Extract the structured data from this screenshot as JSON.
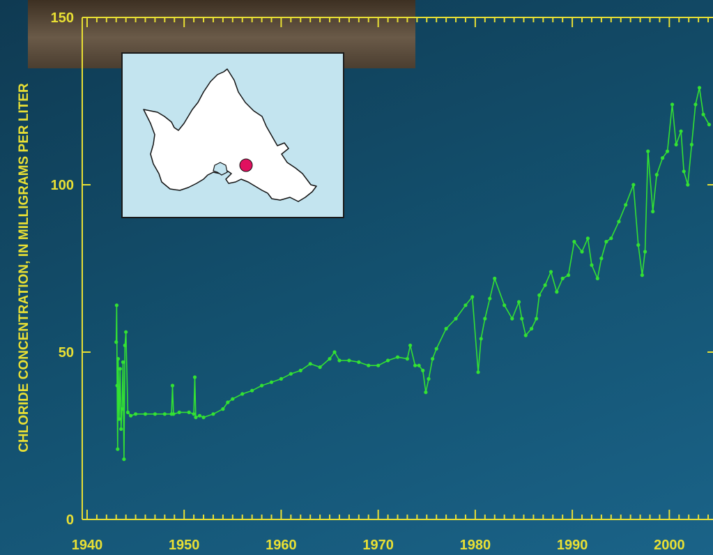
{
  "chart_data": {
    "type": "line",
    "ylabel": "CHLORIDE CONCENTRATION, IN MILLIGRAMS PER LITER",
    "xlabel": "",
    "title": "",
    "x_ticks": [
      "1940",
      "1950",
      "1960",
      "1970",
      "1980",
      "1990",
      "2000"
    ],
    "y_ticks": [
      "0",
      "50",
      "100",
      "150"
    ],
    "xlim": [
      1939.5,
      2004.5
    ],
    "ylim": [
      0,
      150
    ],
    "grid": false,
    "series": [
      {
        "points": [
          [
            1943.0,
            53
          ],
          [
            1943.05,
            64
          ],
          [
            1943.1,
            40
          ],
          [
            1943.15,
            21
          ],
          [
            1943.2,
            48
          ],
          [
            1943.3,
            30
          ],
          [
            1943.4,
            45
          ],
          [
            1943.5,
            27
          ],
          [
            1943.6,
            33
          ],
          [
            1943.7,
            47
          ],
          [
            1943.8,
            18
          ],
          [
            1943.9,
            52
          ],
          [
            1944.0,
            56
          ],
          [
            1944.2,
            32
          ],
          [
            1944.5,
            31
          ],
          [
            1945,
            31.5
          ],
          [
            1946,
            31.5
          ],
          [
            1947,
            31.5
          ],
          [
            1948,
            31.5
          ],
          [
            1948.7,
            31.5
          ],
          [
            1948.8,
            40
          ],
          [
            1948.9,
            31.5
          ],
          [
            1949.5,
            32
          ],
          [
            1950.5,
            32
          ],
          [
            1951.0,
            31.5
          ],
          [
            1951.1,
            42.5
          ],
          [
            1951.2,
            30.5
          ],
          [
            1951.6,
            31
          ],
          [
            1952,
            30.5
          ],
          [
            1953,
            31.5
          ],
          [
            1954,
            33
          ],
          [
            1954.5,
            35
          ],
          [
            1955,
            36
          ],
          [
            1956,
            37.5
          ],
          [
            1957,
            38.5
          ],
          [
            1958,
            40
          ],
          [
            1959,
            41
          ],
          [
            1960,
            42
          ],
          [
            1961,
            43.5
          ],
          [
            1962,
            44.5
          ],
          [
            1963,
            46.5
          ],
          [
            1964,
            45.5
          ],
          [
            1965,
            48
          ],
          [
            1965.5,
            50
          ],
          [
            1966,
            47.5
          ],
          [
            1967,
            47.5
          ],
          [
            1968,
            47
          ],
          [
            1969,
            46
          ],
          [
            1970,
            46
          ],
          [
            1971,
            47.5
          ],
          [
            1972,
            48.5
          ],
          [
            1973,
            48
          ],
          [
            1973.3,
            52
          ],
          [
            1973.8,
            46
          ],
          [
            1974.2,
            46
          ],
          [
            1974.6,
            44.5
          ],
          [
            1974.9,
            38
          ],
          [
            1975.2,
            42
          ],
          [
            1975.6,
            48
          ],
          [
            1976,
            51
          ],
          [
            1977,
            57
          ],
          [
            1978,
            60
          ],
          [
            1979,
            64
          ],
          [
            1979.7,
            66.5
          ],
          [
            1980.3,
            44
          ],
          [
            1980.6,
            54
          ],
          [
            1981,
            60
          ],
          [
            1981.5,
            66
          ],
          [
            1982,
            72
          ],
          [
            1983,
            64
          ],
          [
            1983.8,
            60
          ],
          [
            1984.5,
            65
          ],
          [
            1984.8,
            60
          ],
          [
            1985.2,
            55
          ],
          [
            1985.8,
            57
          ],
          [
            1986.3,
            60
          ],
          [
            1986.6,
            67
          ],
          [
            1987.2,
            70
          ],
          [
            1987.8,
            74
          ],
          [
            1988.4,
            68
          ],
          [
            1989,
            72
          ],
          [
            1989.6,
            73
          ],
          [
            1990.2,
            83
          ],
          [
            1991,
            80
          ],
          [
            1991.6,
            84
          ],
          [
            1992,
            76
          ],
          [
            1992.6,
            72
          ],
          [
            1993,
            78
          ],
          [
            1993.5,
            83
          ],
          [
            1994,
            84
          ],
          [
            1994.8,
            89
          ],
          [
            1995.5,
            94
          ],
          [
            1996.3,
            100
          ],
          [
            1996.8,
            82
          ],
          [
            1997.2,
            73
          ],
          [
            1997.5,
            80
          ],
          [
            1997.8,
            110
          ],
          [
            1998.3,
            92
          ],
          [
            1998.7,
            103
          ],
          [
            1999.3,
            108
          ],
          [
            1999.8,
            110
          ],
          [
            2000.3,
            124
          ],
          [
            2000.7,
            112
          ],
          [
            2001.2,
            116
          ],
          [
            2001.5,
            104
          ],
          [
            2001.9,
            100
          ],
          [
            2002.3,
            112
          ],
          [
            2002.7,
            124
          ],
          [
            2003.1,
            129
          ],
          [
            2003.5,
            121
          ],
          [
            2004.1,
            118
          ]
        ]
      }
    ],
    "line_color": "#33e133"
  },
  "inset_map": {
    "marker_color": "#e0115f",
    "background": "#c3e4ef"
  }
}
